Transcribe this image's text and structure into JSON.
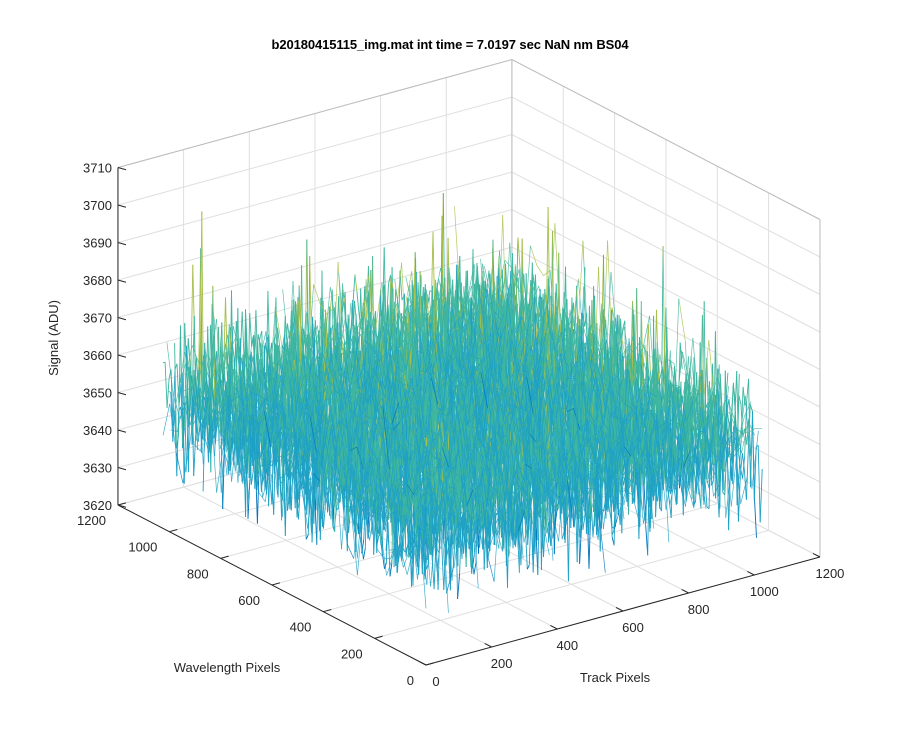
{
  "chart_data": {
    "type": "surface",
    "title": "b20180415115_img.mat int time = 7.0197 sec  NaN nm BS04",
    "xlabel": "Track Pixels",
    "ylabel": "Wavelength Pixels",
    "zlabel": "Signal (ADU)",
    "xlim": [
      0,
      1200
    ],
    "ylim": [
      0,
      1200
    ],
    "zlim": [
      3620,
      3710
    ],
    "x_ticks": [
      "0",
      "200",
      "400",
      "600",
      "800",
      "1000",
      "1200"
    ],
    "y_ticks": [
      "0",
      "200",
      "400",
      "600",
      "800",
      "1000",
      "1200"
    ],
    "z_ticks": [
      "3620",
      "3630",
      "3640",
      "3650",
      "3660",
      "3670",
      "3680",
      "3690",
      "3700",
      "3710"
    ],
    "x_range": [
      0,
      1024
    ],
    "y_range": [
      0,
      1024
    ],
    "mean_signal": 3655,
    "signal_range": [
      3625,
      3700
    ],
    "grid": true,
    "colormap": "parula",
    "colors": {
      "low": "#0072bd",
      "mid_low": "#1fa1c6",
      "mid": "#3fb6a0",
      "mid_high": "#a7bf49",
      "high": "#eeb52f"
    }
  }
}
